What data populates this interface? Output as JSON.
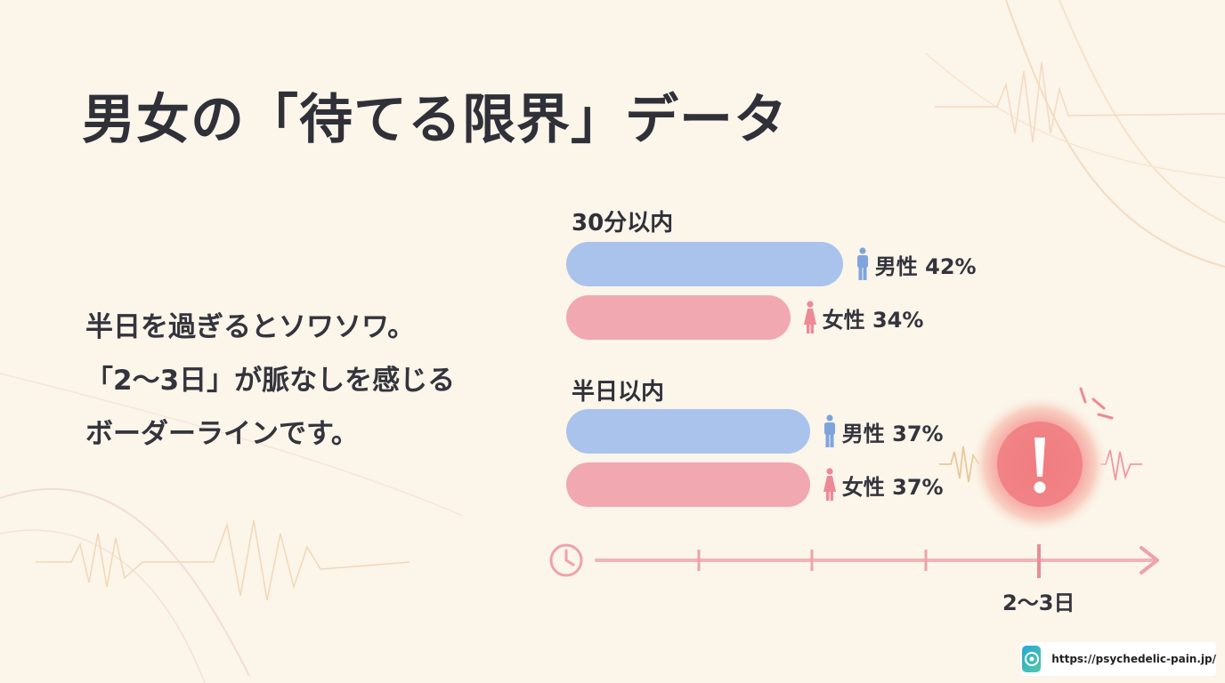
{
  "title": "男女の「待てる限界」データ",
  "description": [
    "半日を過ぎるとソワソワ。",
    "「2〜3日」が脈なしを感じる",
    "ボーダーラインです。"
  ],
  "chart_data": {
    "type": "bar",
    "orientation": "horizontal",
    "categories": [
      "30分以内",
      "半日以内"
    ],
    "series": [
      {
        "name": "男性",
        "values": [
          42,
          37
        ],
        "color": "#a9c3ec"
      },
      {
        "name": "女性",
        "values": [
          34,
          37
        ],
        "color": "#f2a8b1"
      }
    ],
    "value_unit": "%",
    "grid": false,
    "labels": {
      "g0": {
        "label": "30分以内",
        "male": "男性 42%",
        "female": "女性 34%"
      },
      "g1": {
        "label": "半日以内",
        "male": "男性 37%",
        "female": "女性 37%"
      }
    }
  },
  "timeline": {
    "icon": "clock-icon",
    "marker_label": "2〜3日",
    "alert_icon": "exclamation-icon"
  },
  "footer": {
    "url": "https://psychedelic-pain.jp/"
  },
  "colors": {
    "background": "#fbf5ea",
    "male": "#a9c3ec",
    "male_icon": "#7fa4dc",
    "female": "#f2a8b1",
    "female_icon": "#ee8a97",
    "timeline": "#eea3a8",
    "alert": "#f07c80"
  }
}
